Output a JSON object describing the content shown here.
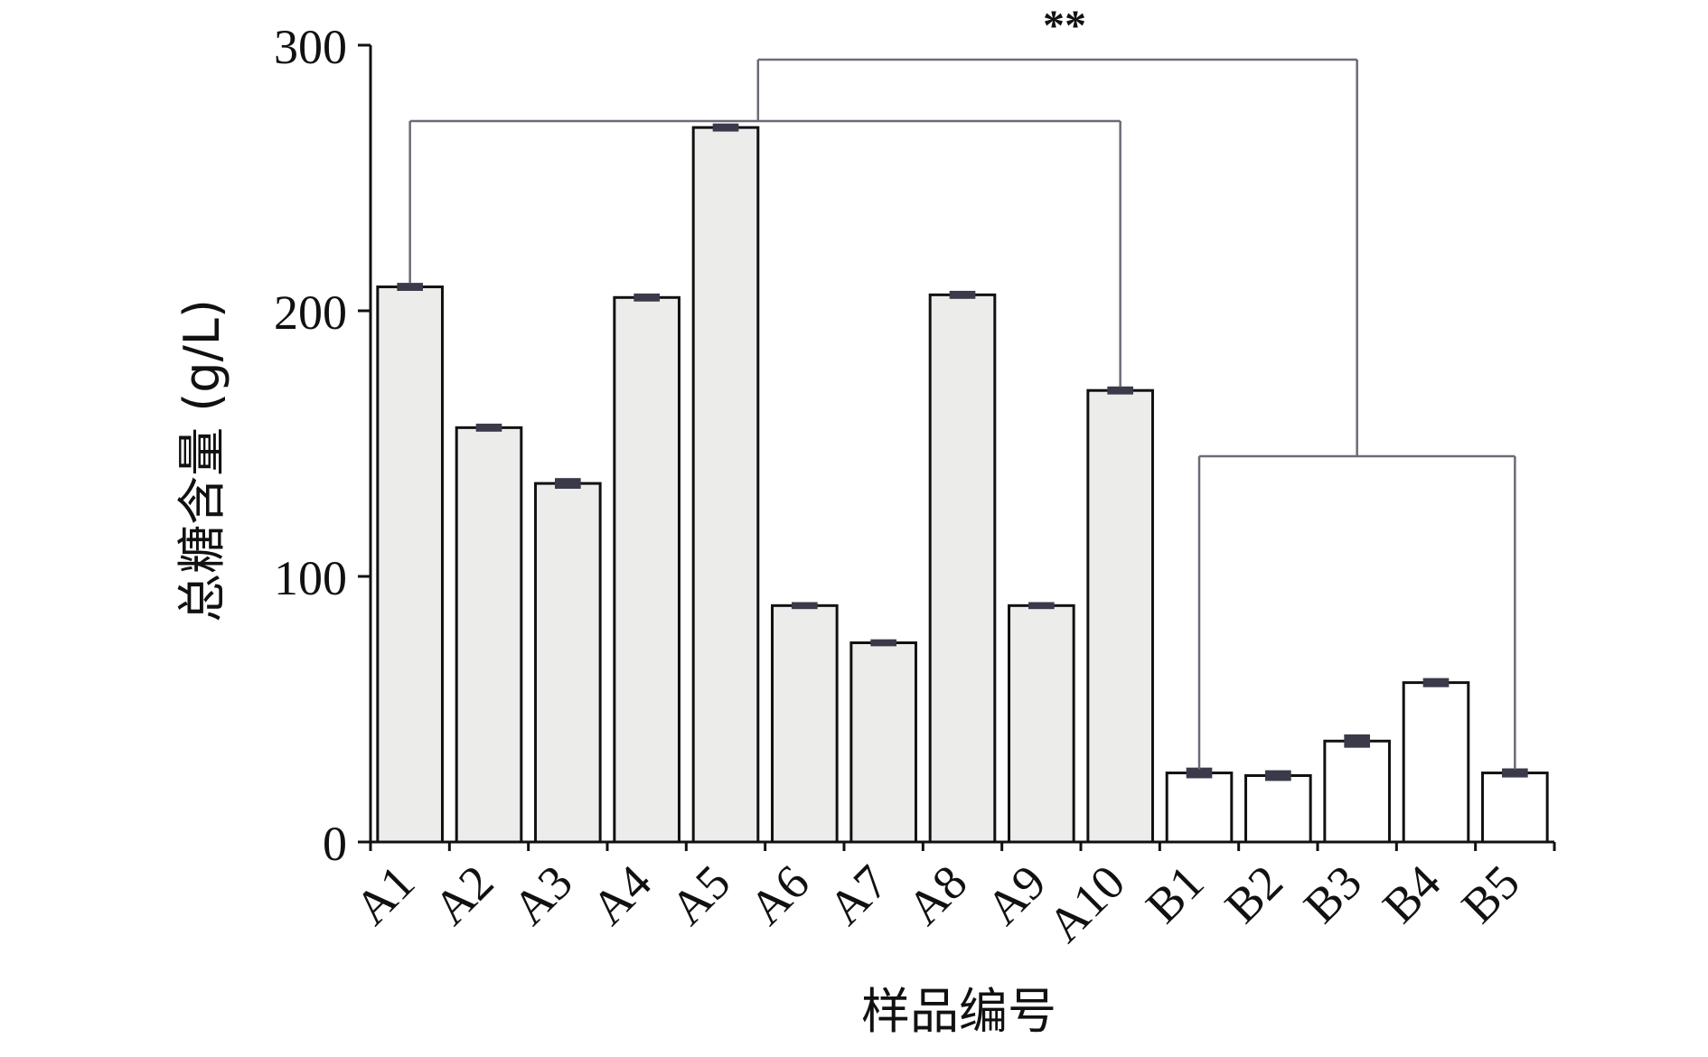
{
  "chart_data": {
    "type": "bar",
    "xlabel": "样品编号",
    "ylabel": "总糖含量 (g/L)",
    "ylim": [
      0,
      300
    ],
    "yticks": [
      0,
      100,
      200,
      300
    ],
    "categories": [
      "A1",
      "A2",
      "A3",
      "A4",
      "A5",
      "A6",
      "A7",
      "A8",
      "A9",
      "A10",
      "B1",
      "B2",
      "B3",
      "B4",
      "B5"
    ],
    "groups": [
      "A",
      "A",
      "A",
      "A",
      "A",
      "A",
      "A",
      "A",
      "A",
      "A",
      "B",
      "B",
      "B",
      "B",
      "B"
    ],
    "values": [
      209,
      156,
      135,
      205,
      269,
      89,
      75,
      206,
      89,
      170,
      26,
      25,
      38,
      60,
      26
    ],
    "errors": [
      1.0,
      1.0,
      1.5,
      1.0,
      1.0,
      0.8,
      0.8,
      1.0,
      0.8,
      1.0,
      1.5,
      1.5,
      2.0,
      1.2,
      1.2
    ],
    "significance": "**",
    "colors": {
      "group_A_fill": "#ececea",
      "group_B_fill": "#ffffff",
      "bar_edge": "#111111",
      "bracket": "#6b6b78",
      "error_bar": "#3a3a4a"
    }
  }
}
